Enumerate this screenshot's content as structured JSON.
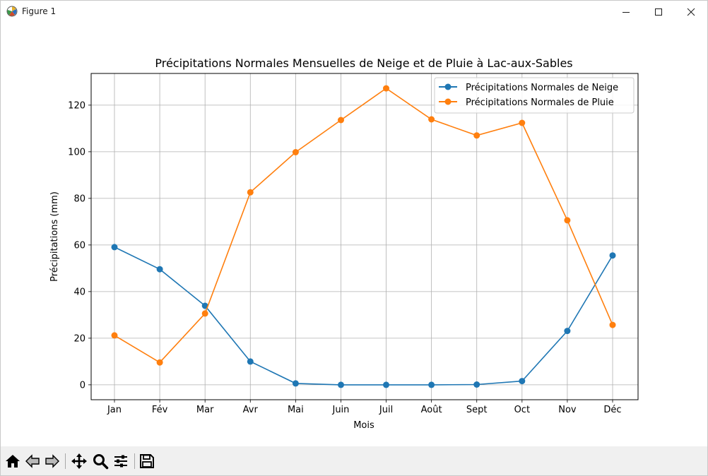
{
  "window": {
    "title": "Figure 1",
    "icon": "matplotlib-icon",
    "controls": [
      "minimize-icon",
      "maximize-icon",
      "close-icon"
    ]
  },
  "toolbar": {
    "tools": [
      "home-icon",
      "back-arrow-icon",
      "forward-arrow-icon",
      "pan-icon",
      "zoom-icon",
      "configure-subplots-icon",
      "save-icon"
    ]
  },
  "chart_data": {
    "type": "line",
    "title": "Précipitations Normales Mensuelles de Neige et de Pluie à Lac-aux-Sables",
    "xlabel": "Mois",
    "ylabel": "Précipitations (mm)",
    "categories": [
      "Jan",
      "Fév",
      "Mar",
      "Avr",
      "Mai",
      "Juin",
      "Juil",
      "Août",
      "Sept",
      "Oct",
      "Nov",
      "Déc"
    ],
    "yticks": [
      0,
      20,
      40,
      60,
      80,
      100,
      120
    ],
    "ylim": [
      -6.4,
      133.6
    ],
    "grid": true,
    "legend_position": "upper-right",
    "series": [
      {
        "name": "Précipitations Normales de Neige",
        "color": "#1f77b4",
        "marker": "circle",
        "values": [
          59.1,
          49.6,
          33.9,
          10.0,
          0.6,
          0.0,
          0.0,
          0.0,
          0.1,
          1.6,
          23.1,
          55.5
        ]
      },
      {
        "name": "Précipitations Normales de Pluie",
        "color": "#ff7f0e",
        "marker": "circle",
        "values": [
          21.2,
          9.6,
          30.6,
          82.6,
          99.8,
          113.6,
          127.2,
          113.9,
          107.0,
          112.4,
          70.6,
          25.7
        ]
      }
    ]
  }
}
